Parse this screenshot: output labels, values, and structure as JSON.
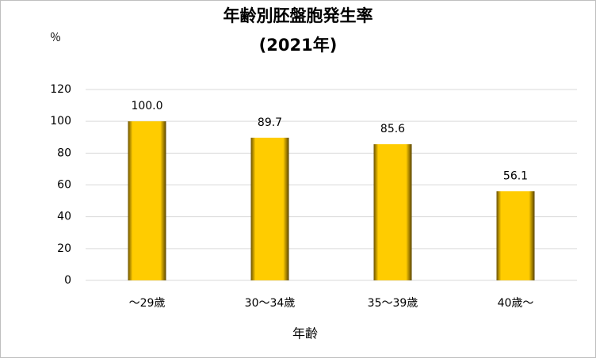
{
  "chart_data": {
    "type": "bar",
    "title": "年齢別胚盤胞発生率",
    "subtitle": "(2021年)",
    "y_unit_label": "％",
    "x_axis_title": "年齢",
    "categories": [
      "～29歳",
      "30～34歳",
      "35～39歳",
      "40歳～"
    ],
    "values": [
      100,
      89.7,
      85.6,
      56.1
    ],
    "value_labels": [
      "100.0",
      "89.7",
      "85.6",
      "56.1"
    ],
    "color": "#ffcc00",
    "ylim": [
      0,
      120
    ],
    "yticks": [
      0,
      20,
      40,
      60,
      80,
      100,
      120
    ],
    "grid": true
  }
}
